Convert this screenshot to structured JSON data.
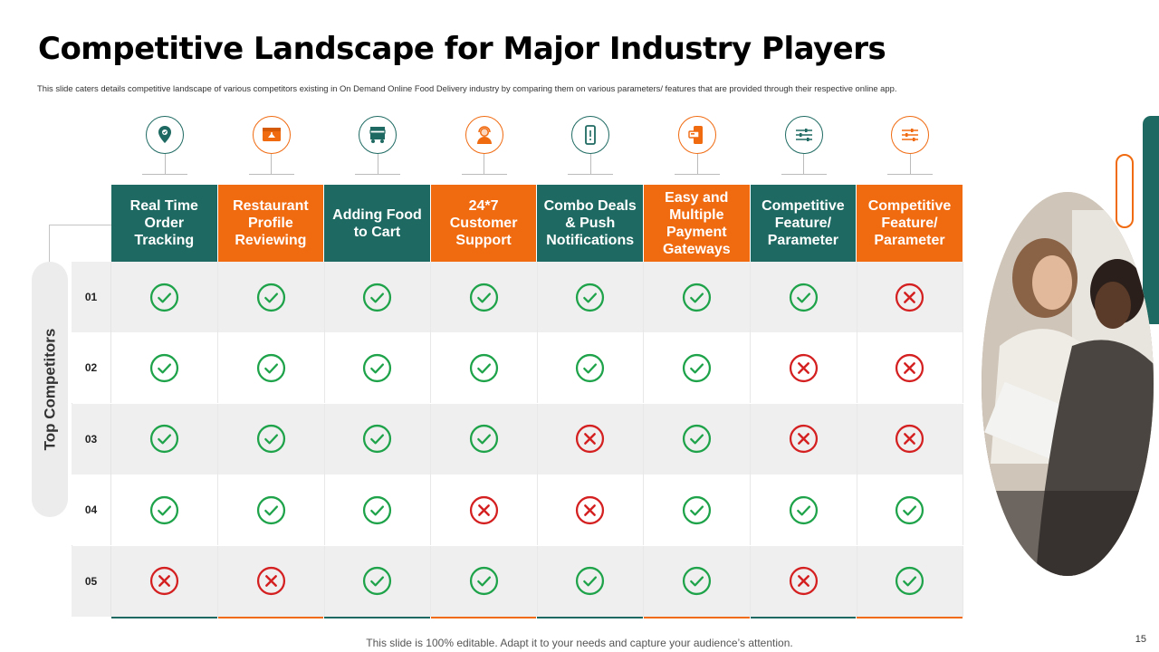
{
  "slide": {
    "title": "Competitive Landscape for Major Industry Players",
    "subtitle": "This slide caters details competitive landscape of various competitors existing in On Demand Online Food Delivery industry by comparing them on various parameters/ features that are provided through their respective online app.",
    "side_label": "Top Competitors",
    "footer": "This slide is 100% editable. Adapt it to your needs and capture your audience’s attention.",
    "page_number": "15",
    "photo_alt": "people-working-photo"
  },
  "colors": {
    "teal": "#1e6a62",
    "orange": "#f06a10",
    "check": "#1fa34a",
    "cross": "#d42020"
  },
  "columns": [
    {
      "label": "Real Time Order Tracking",
      "color": "teal",
      "icon": "location-pin-icon"
    },
    {
      "label": "Restaurant Profile Reviewing",
      "color": "orange",
      "icon": "restaurant-icon"
    },
    {
      "label": "Adding Food to Cart",
      "color": "teal",
      "icon": "food-cart-icon"
    },
    {
      "label": "24*7 Customer Support",
      "color": "orange",
      "icon": "support-agent-icon"
    },
    {
      "label": "Combo Deals & Push Notifications",
      "color": "teal",
      "icon": "mobile-notification-icon"
    },
    {
      "label": "Easy and Multiple Payment Gateways",
      "color": "orange",
      "icon": "mobile-payment-icon"
    },
    {
      "label": "Competitive Feature/ Parameter",
      "color": "teal",
      "icon": "sliders-icon"
    },
    {
      "label": "Competitive Feature/ Parameter",
      "color": "orange",
      "icon": "sliders-icon"
    }
  ],
  "rows": [
    {
      "label": "01",
      "values": [
        true,
        true,
        true,
        true,
        true,
        true,
        true,
        false
      ]
    },
    {
      "label": "02",
      "values": [
        true,
        true,
        true,
        true,
        true,
        true,
        false,
        false
      ]
    },
    {
      "label": "03",
      "values": [
        true,
        true,
        true,
        true,
        false,
        true,
        false,
        false
      ]
    },
    {
      "label": "04",
      "values": [
        true,
        true,
        true,
        false,
        false,
        true,
        true,
        true
      ]
    },
    {
      "label": "05",
      "values": [
        false,
        false,
        true,
        true,
        true,
        true,
        false,
        true
      ]
    }
  ]
}
